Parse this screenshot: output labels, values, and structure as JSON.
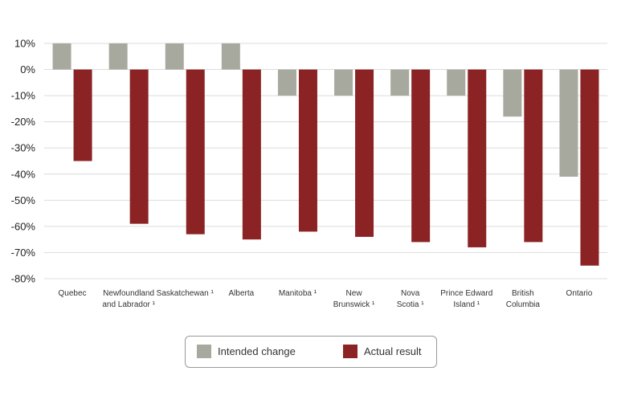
{
  "chart_data": {
    "type": "bar",
    "categories": [
      [
        "Quebec"
      ],
      [
        "Newfoundland",
        "and Labrador ¹"
      ],
      [
        "Saskatchewan ¹"
      ],
      [
        "Alberta"
      ],
      [
        "Manitoba ¹"
      ],
      [
        "New",
        "Brunswick ¹"
      ],
      [
        "Nova",
        "Scotia ¹"
      ],
      [
        "Prince Edward",
        "Island ¹"
      ],
      [
        "British",
        "Columbia"
      ],
      [
        "Ontario"
      ]
    ],
    "series": [
      {
        "name": "Intended change",
        "color": "#a8a99e",
        "values": [
          10,
          10,
          10,
          10,
          -10,
          -10,
          -10,
          -10,
          -18,
          -41
        ]
      },
      {
        "name": "Actual result",
        "color": "#8b2325",
        "values": [
          -35,
          -59,
          -63,
          -65,
          -62,
          -64,
          -66,
          -68,
          -66,
          -75
        ]
      }
    ],
    "ylim": [
      -80,
      10
    ],
    "yticks": [
      10,
      0,
      -10,
      -20,
      -30,
      -40,
      -50,
      -60,
      -70,
      -80
    ],
    "ytick_format": "%",
    "grid": true,
    "legend_position": "bottom"
  },
  "legend": {
    "intended_label": "Intended change",
    "actual_label": "Actual result"
  }
}
